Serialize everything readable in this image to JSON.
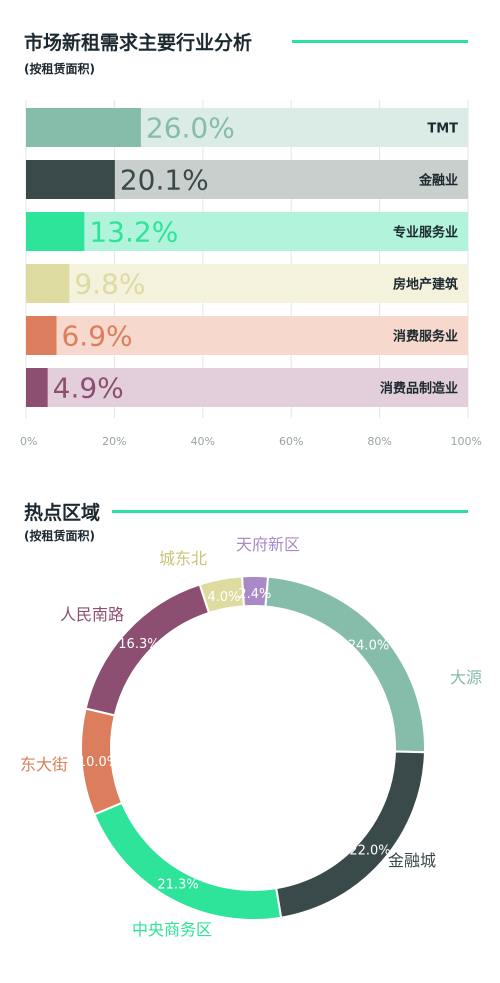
{
  "section1": {
    "title": "市场新租需求主要行业分析",
    "subtitle": "(按租赁面积)"
  },
  "section2": {
    "title": "热点区域",
    "subtitle": "(按租赁面积)"
  },
  "chart_data": [
    {
      "type": "bar",
      "orientation": "horizontal",
      "title": "市场新租需求主要行业分析",
      "subtitle": "(按租赁面积)",
      "categories": [
        "TMT",
        "金融业",
        "专业服务业",
        "房地产建筑",
        "消费服务业",
        "消费品制造业"
      ],
      "values": [
        26.0,
        20.1,
        13.2,
        9.8,
        6.9,
        4.9
      ],
      "value_labels": [
        "26.0%",
        "20.1%",
        "13.2%",
        "9.8%",
        "6.9%",
        "4.9%"
      ],
      "colors": [
        "#86bcaa",
        "#3a4a4a",
        "#2ee39a",
        "#dedba0",
        "#dc7e5d",
        "#8c4f72"
      ],
      "track_colors": [
        "#dbece6",
        "#c9cfcd",
        "#b2f4db",
        "#f4f2dd",
        "#f6d8cc",
        "#e3cfdb"
      ],
      "xlim": [
        0,
        100
      ],
      "x_ticks": [
        "0%",
        "20%",
        "40%",
        "60%",
        "80%",
        "100%"
      ],
      "grid": true
    },
    {
      "type": "pie",
      "donut": true,
      "title": "热点区域",
      "subtitle": "(按租赁面积)",
      "labels": [
        "大源",
        "金融城",
        "中央商务区",
        "东大街",
        "人民南路",
        "城东北",
        "天府新区"
      ],
      "values": [
        24.0,
        22.0,
        21.3,
        10.0,
        16.3,
        4.0,
        2.4
      ],
      "value_labels": [
        "24.0%",
        "22.0%",
        "21.3%",
        "10.0%",
        "16.3%",
        "4.0%",
        "2.4%"
      ],
      "colors": [
        "#86bcaa",
        "#3a4a4a",
        "#2ee39a",
        "#dc7e5d",
        "#8c4f72",
        "#dedba0",
        "#a98ac7"
      ],
      "label_colors": [
        "#86bcaa",
        "#3a4a4a",
        "#2ee39a",
        "#dc7e5d",
        "#8c4f72",
        "#c9c57a",
        "#a98ac7"
      ]
    }
  ]
}
